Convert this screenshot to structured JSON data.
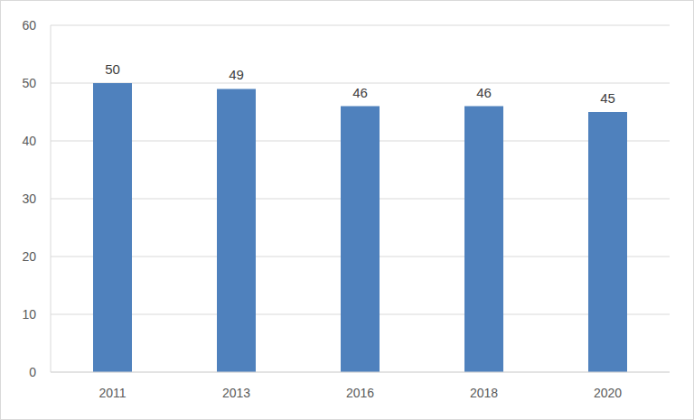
{
  "chart_data": {
    "type": "bar",
    "categories": [
      "2011",
      "2013",
      "2016",
      "2018",
      "2020"
    ],
    "values": [
      50,
      49,
      46,
      46,
      45
    ],
    "color": "#4f81bd",
    "ylim": [
      0,
      60
    ],
    "yticks": [
      0,
      10,
      20,
      30,
      40,
      50,
      60
    ],
    "grid": true,
    "data_labels": true
  }
}
